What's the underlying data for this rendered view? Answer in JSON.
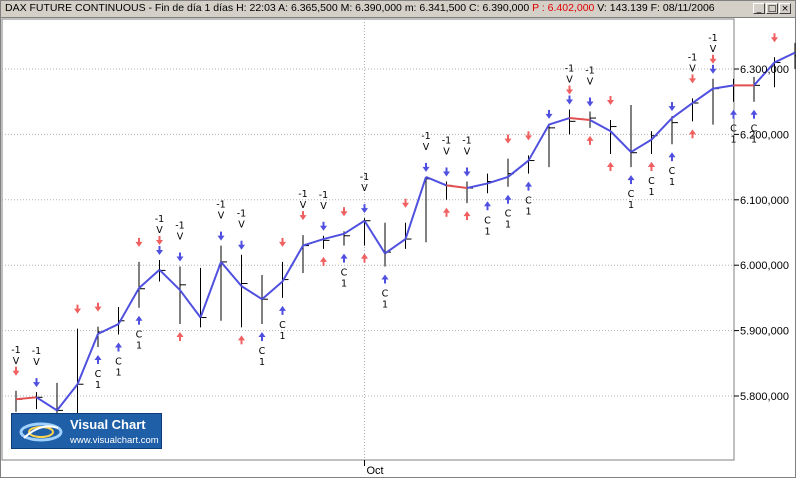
{
  "window": {
    "title": "DAX FUTURE CONTINUOUS - Fin de día 1 días",
    "header": {
      "h": "H: 22:03",
      "a": "A: 6.365,500",
      "m": "M: 6.390,000",
      "min": "m: 6.341,500",
      "c": "C: 6.390,000",
      "p": "P : 6.402,000",
      "v": "V: 143.139",
      "f": "F: 08/11/2006"
    },
    "buttons": {
      "minimize": "_",
      "maximize": "□",
      "close": "×"
    }
  },
  "logo": {
    "name": "Visual Chart",
    "url": "www.visualchart.com"
  },
  "colors": {
    "line_up": "#5050e0",
    "line_down": "#e05050",
    "arrow_up": "#5050e0",
    "arrow_down": "#f06060",
    "bars": "#000000",
    "grid": "#b0b0b0"
  },
  "chart_data": {
    "type": "line",
    "ylim": [
      5700000,
      6370000
    ],
    "y_ticks": [
      5800000,
      5900000,
      6000000,
      6100000,
      6200000,
      6300000
    ],
    "y_tick_labels": [
      "5.800,000",
      "5.900,000",
      "6.000,000",
      "6.100,000",
      "6.200,000",
      "6.300,000"
    ],
    "x_label_tick": "Oct",
    "x_label_index": 17,
    "grid": true,
    "signals": {
      "sell_label": "-1",
      "sell_text": "V",
      "buy_label": "C",
      "buy_qty": "1"
    },
    "bars": [
      {
        "h": 5808000,
        "l": 5776000,
        "c": 5795000
      },
      {
        "h": 5806000,
        "l": 5780000,
        "c": 5798000
      },
      {
        "h": 5820000,
        "l": 5772000,
        "c": 5778000
      },
      {
        "h": 5903000,
        "l": 5745000,
        "c": 5818000
      },
      {
        "h": 5906000,
        "l": 5875000,
        "c": 5898000
      },
      {
        "h": 5936000,
        "l": 5894000,
        "c": 5915000
      },
      {
        "h": 6005000,
        "l": 5935000,
        "c": 5964000
      },
      {
        "h": 6008000,
        "l": 5975000,
        "c": 5992000
      },
      {
        "h": 5998000,
        "l": 5910000,
        "c": 5970000
      },
      {
        "h": 5996000,
        "l": 5905000,
        "c": 5920000
      },
      {
        "h": 6030000,
        "l": 5915000,
        "c": 6005000
      },
      {
        "h": 6016000,
        "l": 5905000,
        "c": 5972000
      },
      {
        "h": 5985000,
        "l": 5910000,
        "c": 5948000
      },
      {
        "h": 6005000,
        "l": 5950000,
        "c": 5978000
      },
      {
        "h": 6046000,
        "l": 5988000,
        "c": 6030000
      },
      {
        "h": 6045000,
        "l": 6025000,
        "c": 6038000
      },
      {
        "h": 6052000,
        "l": 6030000,
        "c": 6045000
      },
      {
        "h": 6072000,
        "l": 6030000,
        "c": 6068000
      },
      {
        "h": 6065000,
        "l": 5998000,
        "c": 6020000
      },
      {
        "h": 6065000,
        "l": 6025000,
        "c": 6040000
      },
      {
        "h": 6135000,
        "l": 6035000,
        "c": 6132000
      },
      {
        "h": 6128000,
        "l": 6100000,
        "c": 6122000
      },
      {
        "h": 6128000,
        "l": 6095000,
        "c": 6118000
      },
      {
        "h": 6140000,
        "l": 6110000,
        "c": 6128000
      },
      {
        "h": 6163000,
        "l": 6120000,
        "c": 6140000
      },
      {
        "h": 6168000,
        "l": 6140000,
        "c": 6160000
      },
      {
        "h": 6216000,
        "l": 6150000,
        "c": 6210000
      },
      {
        "h": 6238000,
        "l": 6200000,
        "c": 6220000
      },
      {
        "h": 6235000,
        "l": 6210000,
        "c": 6225000
      },
      {
        "h": 6222000,
        "l": 6170000,
        "c": 6212000
      },
      {
        "h": 6245000,
        "l": 6150000,
        "c": 6172000
      },
      {
        "h": 6205000,
        "l": 6170000,
        "c": 6198000
      },
      {
        "h": 6228000,
        "l": 6185000,
        "c": 6218000
      },
      {
        "h": 6255000,
        "l": 6220000,
        "c": 6248000
      },
      {
        "h": 6285000,
        "l": 6215000,
        "c": 6270000
      },
      {
        "h": 6285000,
        "l": 6250000,
        "c": 6275000
      },
      {
        "h": 6288000,
        "l": 6250000,
        "c": 6275000
      },
      {
        "h": 6318000,
        "l": 6272000,
        "c": 6310000
      },
      {
        "h": 6340000,
        "l": 6300000,
        "c": 6320000
      }
    ],
    "line": [
      5795000,
      5798000,
      5778000,
      5818000,
      5895000,
      5910000,
      5965000,
      5993000,
      5962000,
      5920000,
      6005000,
      5968000,
      5948000,
      5975000,
      6030000,
      6040000,
      6048000,
      6068000,
      6018000,
      6040000,
      6135000,
      6122000,
      6118000,
      6125000,
      6135000,
      6160000,
      6215000,
      6225000,
      6222000,
      6205000,
      6173000,
      6192000,
      6225000,
      6248000,
      6270000,
      6275000,
      6275000,
      6310000,
      6325000
    ],
    "line_down_segments": [
      [
        0,
        1
      ],
      [
        21,
        22
      ],
      [
        27,
        28
      ],
      [
        35,
        36
      ]
    ],
    "sell_signals": [
      0,
      1,
      7,
      8,
      10,
      11,
      14,
      15,
      17,
      20,
      21,
      22,
      27,
      28,
      33,
      34
    ],
    "buy_signals": [
      4,
      5,
      6,
      12,
      13,
      16,
      18,
      23,
      24,
      25,
      30,
      31,
      32,
      35,
      36
    ],
    "arrows_up_blue": [
      2,
      3,
      4,
      5,
      6,
      12,
      13,
      16,
      18,
      23,
      24,
      25,
      30,
      31,
      32,
      35,
      36
    ],
    "arrows_down_red": [
      0,
      3,
      4,
      6,
      7,
      13,
      14,
      16,
      19,
      24,
      25,
      27,
      29,
      33,
      34,
      37
    ],
    "arrows_up_red": [
      8,
      11,
      15,
      17,
      21,
      22,
      28,
      29,
      31,
      33
    ],
    "arrows_down_blue": [
      1,
      7,
      8,
      10,
      11,
      15,
      17,
      20,
      21,
      22,
      26,
      27,
      28,
      32,
      34
    ]
  }
}
